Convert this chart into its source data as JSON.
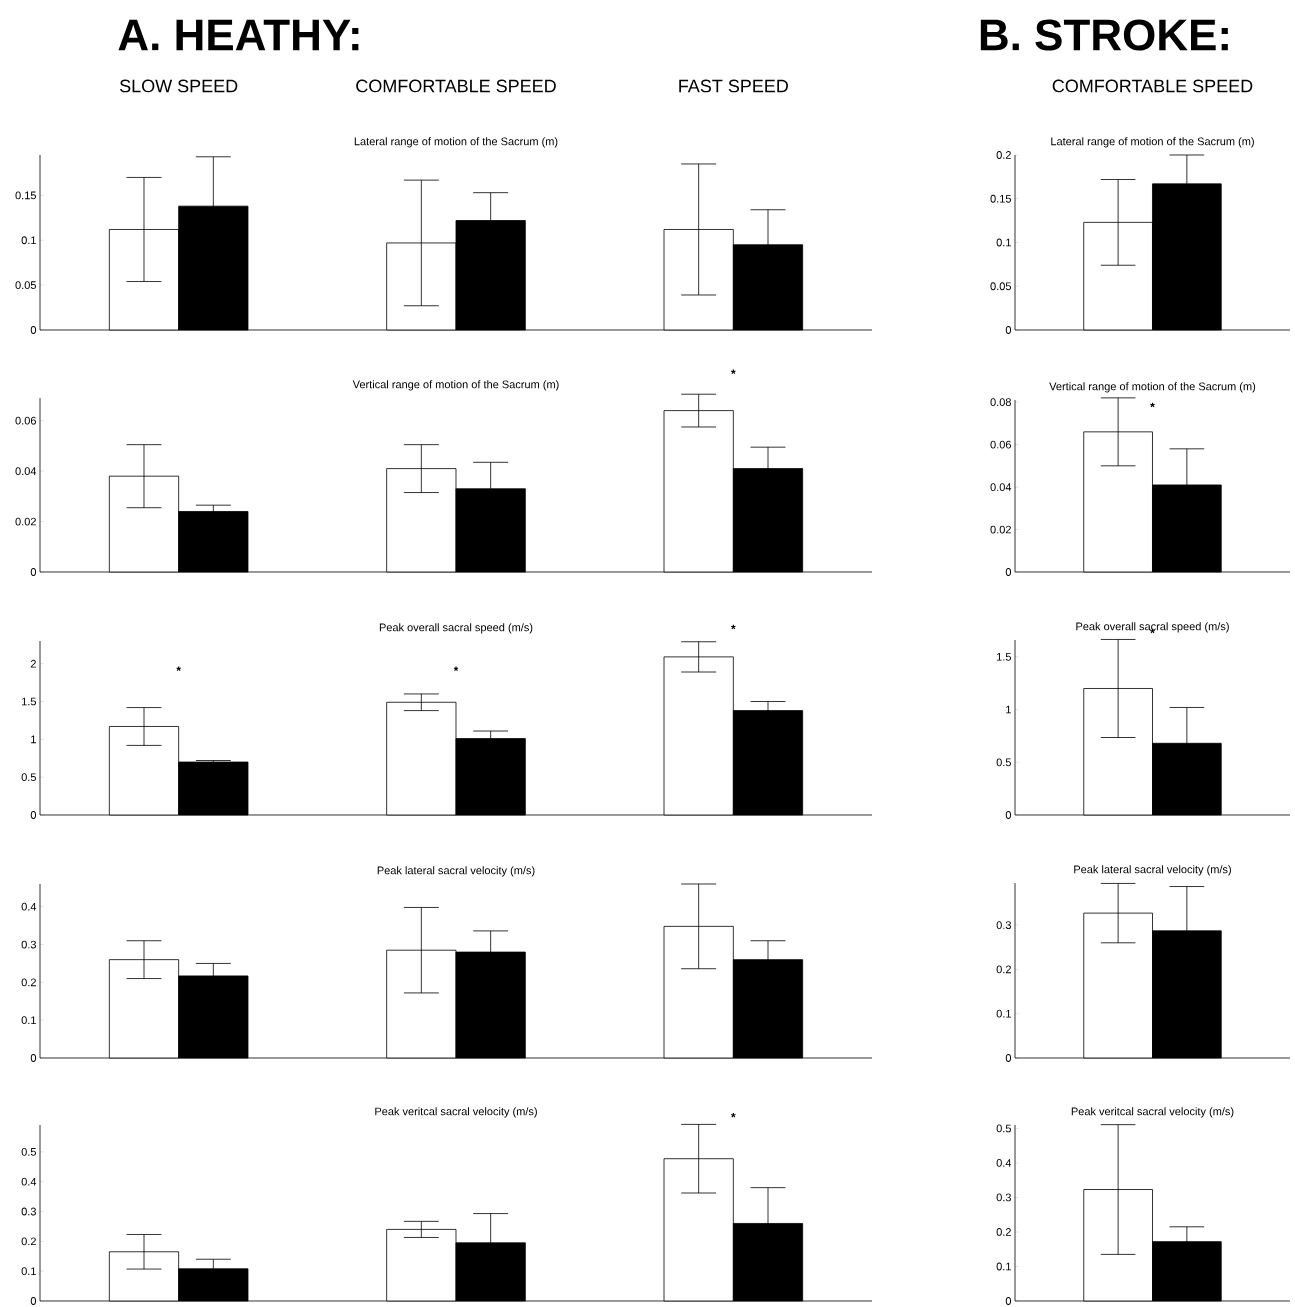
{
  "chart_data": [
    {
      "type": "bar",
      "title": "Lateral range of motion of the Sacrum (m)",
      "categories": [
        "SLOW SPEED",
        "COMFORTABLE SPEED",
        "FAST SPEED"
      ],
      "ylim": [
        0,
        0.195
      ],
      "yticks": [
        0,
        0.05,
        0.1,
        0.15
      ],
      "annotations": [
        "A. HEATHY:"
      ],
      "series": [
        {
          "color": "#ffffff",
          "values": [
            0.112,
            0.097,
            0.112
          ],
          "errors": [
            0.058,
            0.07,
            0.073
          ]
        },
        {
          "color": "#000000",
          "values": [
            0.138,
            0.122,
            0.095
          ],
          "errors": [
            0.055,
            0.031,
            0.039
          ]
        }
      ]
    },
    {
      "type": "bar",
      "title": "Lateral range of motion of the Sacrum (m)",
      "categories": [
        "COMFORTABLE SPEED"
      ],
      "ylim": [
        0,
        0.2
      ],
      "yticks": [
        0,
        0.05,
        0.1,
        0.15,
        0.2
      ],
      "annotations": [
        "B. STROKE:"
      ],
      "series": [
        {
          "color": "#ffffff",
          "values": [
            0.123
          ],
          "errors": [
            0.049
          ]
        },
        {
          "color": "#000000",
          "values": [
            0.167
          ],
          "errors": [
            0.033
          ]
        }
      ]
    },
    {
      "type": "bar",
      "title": "Vertical range of motion of the Sacrum (m)",
      "categories": [
        null,
        null,
        null
      ],
      "ylim": [
        0,
        0.069
      ],
      "yticks": [
        0,
        0.02,
        0.04,
        0.06
      ],
      "annotations": [
        "*"
      ],
      "series": [
        {
          "color": "#ffffff",
          "values": [
            0.038,
            0.041,
            0.064
          ],
          "errors": [
            0.0125,
            0.0095,
            0.0065
          ]
        },
        {
          "color": "#000000",
          "values": [
            0.024,
            0.033,
            0.041
          ],
          "errors": [
            0.0025,
            0.0105,
            0.0085
          ]
        }
      ]
    },
    {
      "type": "bar",
      "title": "Vertical range of motion of the Sacrum (m)",
      "categories": [
        null
      ],
      "ylim": [
        0,
        0.081
      ],
      "yticks": [
        0,
        0.02,
        0.04,
        0.06,
        0.08
      ],
      "annotations": [
        "*"
      ],
      "series": [
        {
          "color": "#ffffff",
          "values": [
            0.066
          ],
          "errors": [
            0.016
          ]
        },
        {
          "color": "#000000",
          "values": [
            0.041
          ],
          "errors": [
            0.017
          ]
        }
      ]
    },
    {
      "type": "bar",
      "title": "Peak overall sacral speed (m/s)",
      "categories": [
        null,
        null,
        null
      ],
      "ylim": [
        0,
        2.3
      ],
      "yticks": [
        0,
        0.5,
        1,
        1.5,
        2
      ],
      "annotations": [
        "*",
        "*",
        "*"
      ],
      "series": [
        {
          "color": "#ffffff",
          "values": [
            1.17,
            1.49,
            2.09
          ],
          "errors": [
            0.25,
            0.11,
            0.2
          ]
        },
        {
          "color": "#000000",
          "values": [
            0.7,
            1.01,
            1.38
          ],
          "errors": [
            0.02,
            0.1,
            0.12
          ]
        }
      ]
    },
    {
      "type": "bar",
      "title": "Peak overall sacral speed (m/s)",
      "categories": [
        null
      ],
      "ylim": [
        0,
        1.66
      ],
      "yticks": [
        0,
        0.5,
        1,
        1.5
      ],
      "annotations": [
        "*"
      ],
      "series": [
        {
          "color": "#ffffff",
          "values": [
            1.2
          ],
          "errors": [
            0.465
          ]
        },
        {
          "color": "#000000",
          "values": [
            0.68
          ],
          "errors": [
            0.34
          ]
        }
      ]
    },
    {
      "type": "bar",
      "title": "Peak lateral sacral velocity (m/s)",
      "categories": [
        null,
        null,
        null
      ],
      "ylim": [
        0,
        0.46
      ],
      "yticks": [
        0,
        0.1,
        0.2,
        0.3,
        0.4
      ],
      "series": [
        {
          "color": "#ffffff",
          "values": [
            0.26,
            0.285,
            0.348
          ],
          "errors": [
            0.05,
            0.113,
            0.112
          ]
        },
        {
          "color": "#000000",
          "values": [
            0.217,
            0.28,
            0.26
          ],
          "errors": [
            0.033,
            0.056,
            0.05
          ]
        }
      ]
    },
    {
      "type": "bar",
      "title": "Peak lateral sacral velocity (m/s)",
      "categories": [
        null
      ],
      "ylim": [
        0,
        0.395
      ],
      "yticks": [
        0,
        0.1,
        0.2,
        0.3
      ],
      "series": [
        {
          "color": "#ffffff",
          "values": [
            0.327
          ],
          "errors": [
            0.067
          ]
        },
        {
          "color": "#000000",
          "values": [
            0.287
          ],
          "errors": [
            0.1
          ]
        }
      ]
    },
    {
      "type": "bar",
      "title": "Peak veritcal sacral velocity (m/s)",
      "categories": [
        null,
        null,
        null
      ],
      "ylim": [
        0,
        0.59
      ],
      "yticks": [
        0,
        0.1,
        0.2,
        0.3,
        0.4,
        0.5
      ],
      "annotations": [
        "*"
      ],
      "series": [
        {
          "color": "#ffffff",
          "values": [
            0.165,
            0.24,
            0.477
          ],
          "errors": [
            0.058,
            0.027,
            0.115
          ]
        },
        {
          "color": "#000000",
          "values": [
            0.108,
            0.195,
            0.26
          ],
          "errors": [
            0.032,
            0.098,
            0.12
          ]
        }
      ]
    },
    {
      "type": "bar",
      "title": "Peak veritcal sacral velocity (m/s)",
      "categories": [
        null
      ],
      "ylim": [
        0,
        0.51
      ],
      "yticks": [
        0,
        0.1,
        0.2,
        0.3,
        0.4,
        0.5
      ],
      "series": [
        {
          "color": "#ffffff",
          "values": [
            0.323
          ],
          "errors": [
            0.188
          ]
        },
        {
          "color": "#000000",
          "values": [
            0.172
          ],
          "errors": [
            0.043
          ]
        }
      ]
    }
  ]
}
